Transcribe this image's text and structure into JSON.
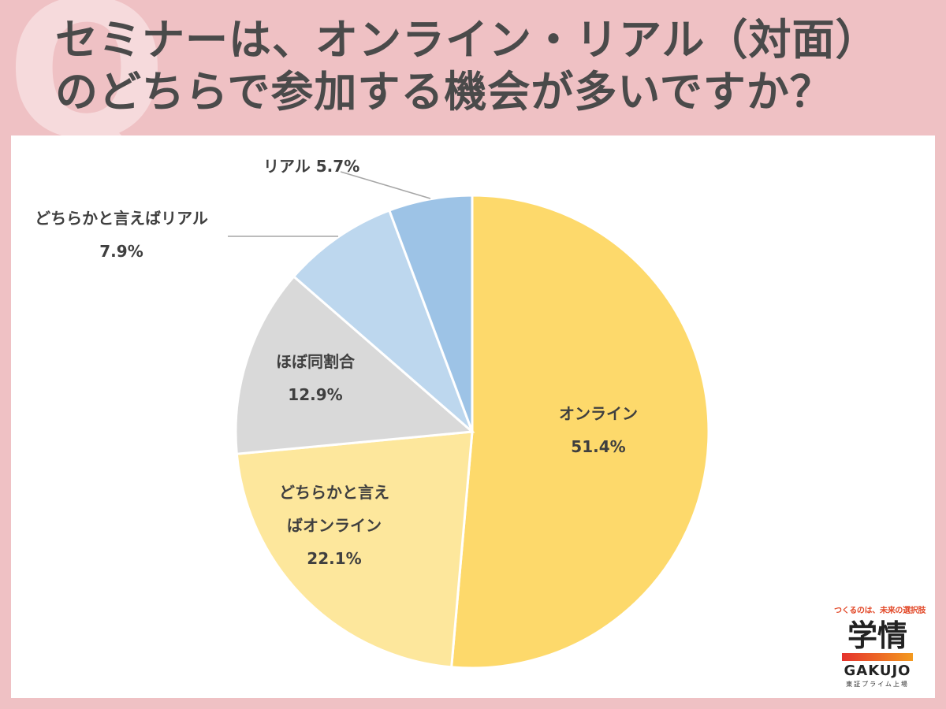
{
  "title_lines": [
    "セミナーは、オンライン・リアル（対面）",
    "のどちらで参加する機会が多いですか？"
  ],
  "decor": {
    "mark": "Q"
  },
  "chart_data": {
    "type": "pie",
    "title": "セミナーは、オンライン・リアル（対面）のどちらで参加する機会が多いですか？",
    "unit": "%",
    "start": "12 o'clock, clockwise",
    "slices": [
      {
        "label_lines": [
          "オンライン"
        ],
        "value": 51.4,
        "value_text": "51.4%",
        "color": "#fdd96b"
      },
      {
        "label_lines": [
          "どちらかと言え",
          "ばオンライン"
        ],
        "value": 22.1,
        "value_text": "22.1%",
        "color": "#fde79c"
      },
      {
        "label_lines": [
          "ほぼ同割合"
        ],
        "value": 12.9,
        "value_text": "12.9%",
        "color": "#d9d9d9"
      },
      {
        "label_lines": [
          "どちらかと言えばリアル"
        ],
        "value": 7.9,
        "value_text": "7.9%",
        "color": "#bdd7ee"
      },
      {
        "label_lines": [
          "リアル 5.7%"
        ],
        "value": 5.7,
        "value_text": "",
        "color": "#9dc3e6"
      }
    ]
  },
  "logo": {
    "tagline": "つくるのは、未来の選択肢",
    "kanji": "学情",
    "latin": "GAKUJO",
    "sub": "東証プライム上場"
  }
}
